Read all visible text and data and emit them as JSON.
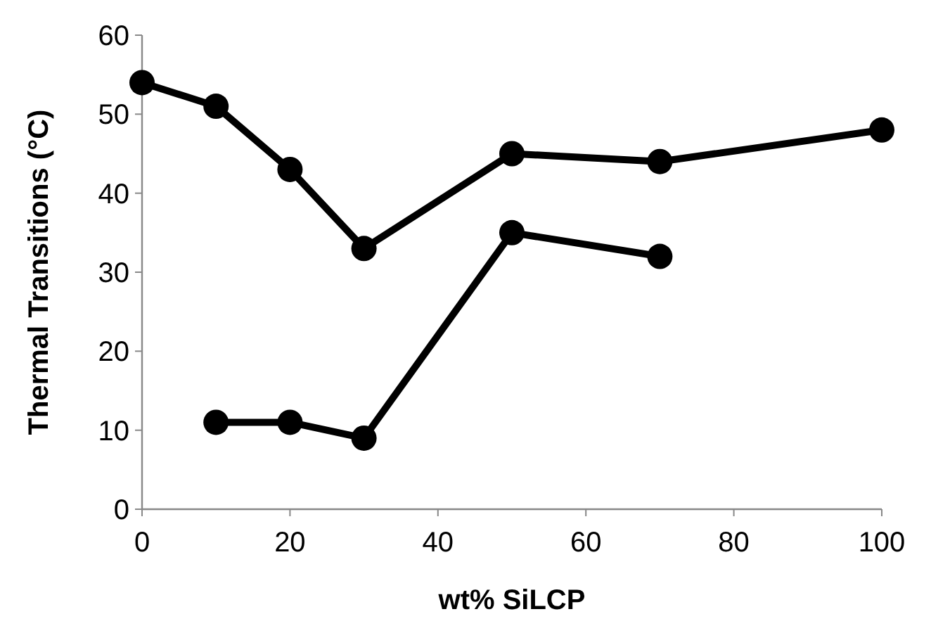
{
  "chart_data": {
    "type": "line",
    "xlabel": "wt% SiLCP",
    "ylabel": "Thermal Transitions (°C)",
    "xlim": [
      0,
      100
    ],
    "xticks": [
      0,
      20,
      40,
      60,
      80,
      100
    ],
    "ylim": [
      0,
      60
    ],
    "yticks": [
      0,
      10,
      20,
      30,
      40,
      50,
      60
    ],
    "marker": "circle",
    "line_style": "solid",
    "grid": false,
    "series": [
      {
        "color": "#000000",
        "x": [
          0,
          10,
          20,
          30,
          50,
          70,
          100
        ],
        "values": [
          54,
          51,
          43,
          33,
          45,
          44,
          48
        ]
      },
      {
        "color": "#000000",
        "x": [
          10,
          20,
          30,
          50,
          70
        ],
        "values": [
          11,
          11,
          9,
          35,
          32
        ]
      }
    ]
  }
}
